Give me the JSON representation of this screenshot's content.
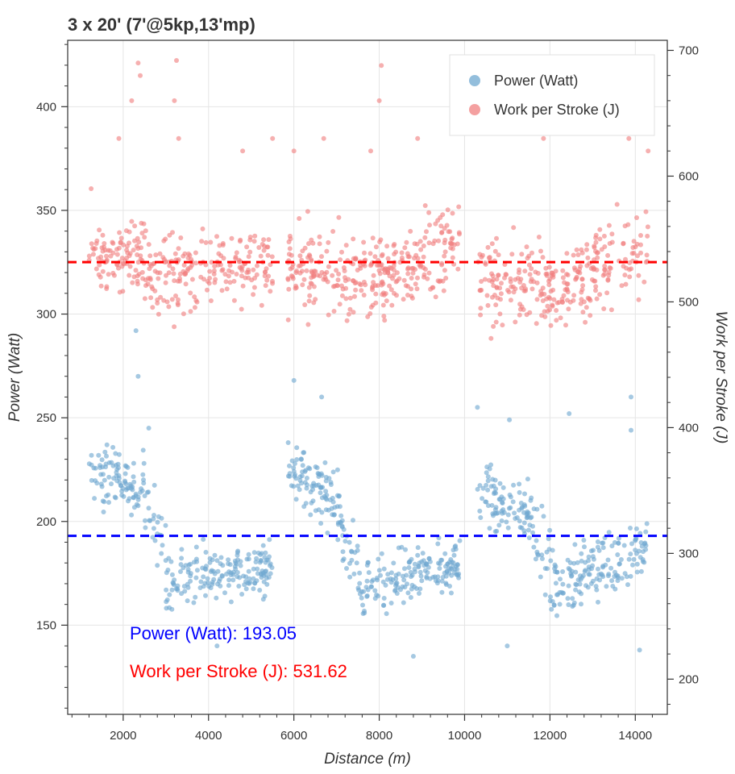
{
  "chart_data": {
    "type": "scatter",
    "title": "3 x 20' (7'@5kp,13'mp)",
    "xlabel": "Distance (m)",
    "ylabel_left": "Power (Watt)",
    "ylabel_right": "Work per Stroke (J)",
    "xlim": [
      700,
      14750
    ],
    "ylim_left": [
      107,
      432
    ],
    "ylim_right": [
      172,
      708
    ],
    "xticks": [
      2000,
      4000,
      6000,
      8000,
      10000,
      12000,
      14000
    ],
    "yticks_left": [
      150,
      200,
      250,
      300,
      350,
      400
    ],
    "yticks_right": [
      200,
      300,
      400,
      500,
      600,
      700
    ],
    "grid": true,
    "legend_position": "top-right",
    "series": [
      {
        "name": "Power (Watt)",
        "axis": "left",
        "color": "#6fa8d0",
        "mean": 193.05,
        "mean_color": "#0000ff",
        "segments": [
          {
            "x0": 1200,
            "x1": 2500,
            "y0": 222,
            "y1": 218,
            "spread": 12,
            "n": 95
          },
          {
            "x0": 2500,
            "x1": 3000,
            "y0": 205,
            "y1": 190,
            "spread": 14,
            "n": 25
          },
          {
            "x0": 3000,
            "x1": 5500,
            "y0": 172,
            "y1": 178,
            "spread": 11,
            "n": 175
          },
          {
            "x0": 5850,
            "x1": 7100,
            "y0": 225,
            "y1": 210,
            "spread": 13,
            "n": 100
          },
          {
            "x0": 7100,
            "x1": 7500,
            "y0": 195,
            "y1": 180,
            "spread": 14,
            "n": 25
          },
          {
            "x0": 7500,
            "x1": 9900,
            "y0": 165,
            "y1": 180,
            "spread": 11,
            "n": 170
          },
          {
            "x0": 10300,
            "x1": 11600,
            "y0": 212,
            "y1": 205,
            "spread": 13,
            "n": 95
          },
          {
            "x0": 11600,
            "x1": 12000,
            "y0": 195,
            "y1": 180,
            "spread": 14,
            "n": 20
          },
          {
            "x0": 12000,
            "x1": 14300,
            "y0": 168,
            "y1": 188,
            "spread": 12,
            "n": 160
          }
        ],
        "outliers": [
          [
            2300,
            292
          ],
          [
            2350,
            270
          ],
          [
            6000,
            268
          ],
          [
            6650,
            260
          ],
          [
            10300,
            255
          ],
          [
            11050,
            249
          ],
          [
            12450,
            252
          ],
          [
            13900,
            244
          ],
          [
            2600,
            245
          ],
          [
            8800,
            135
          ],
          [
            4200,
            140
          ],
          [
            13900,
            260
          ],
          [
            11000,
            140
          ],
          [
            14100,
            138
          ]
        ]
      },
      {
        "name": "Work per Stroke (J)",
        "axis": "right",
        "color": "#f08080",
        "mean": 531.62,
        "mean_color": "#ff0000",
        "segments": [
          {
            "x0": 1200,
            "x1": 2500,
            "y0": 535,
            "y1": 540,
            "spread": 25,
            "n": 100
          },
          {
            "x0": 2500,
            "x1": 5500,
            "y0": 520,
            "y1": 530,
            "spread": 27,
            "n": 200
          },
          {
            "x0": 5850,
            "x1": 7500,
            "y0": 525,
            "y1": 520,
            "spread": 28,
            "n": 125
          },
          {
            "x0": 7500,
            "x1": 9900,
            "y0": 515,
            "y1": 550,
            "spread": 27,
            "n": 190
          },
          {
            "x0": 10300,
            "x1": 12000,
            "y0": 515,
            "y1": 510,
            "spread": 28,
            "n": 125
          },
          {
            "x0": 12000,
            "x1": 14300,
            "y0": 505,
            "y1": 545,
            "spread": 27,
            "n": 160
          }
        ],
        "outliers": [
          [
            2350,
            690
          ],
          [
            2400,
            680
          ],
          [
            2200,
            660
          ],
          [
            3250,
            692
          ],
          [
            3200,
            660
          ],
          [
            8050,
            688
          ],
          [
            8000,
            660
          ],
          [
            1900,
            630
          ],
          [
            3300,
            630
          ],
          [
            4800,
            620
          ],
          [
            6700,
            630
          ],
          [
            7800,
            620
          ],
          [
            8900,
            630
          ],
          [
            11850,
            630
          ],
          [
            13850,
            630
          ],
          [
            13800,
            688
          ],
          [
            14300,
            620
          ],
          [
            1250,
            590
          ],
          [
            5500,
            630
          ],
          [
            6000,
            620
          ]
        ]
      }
    ],
    "annotations": [
      {
        "text": "Power (Watt): 193.05",
        "color": "#0000ff"
      },
      {
        "text": "Work per Stroke (J): 531.62",
        "color": "#ff0000"
      }
    ]
  }
}
